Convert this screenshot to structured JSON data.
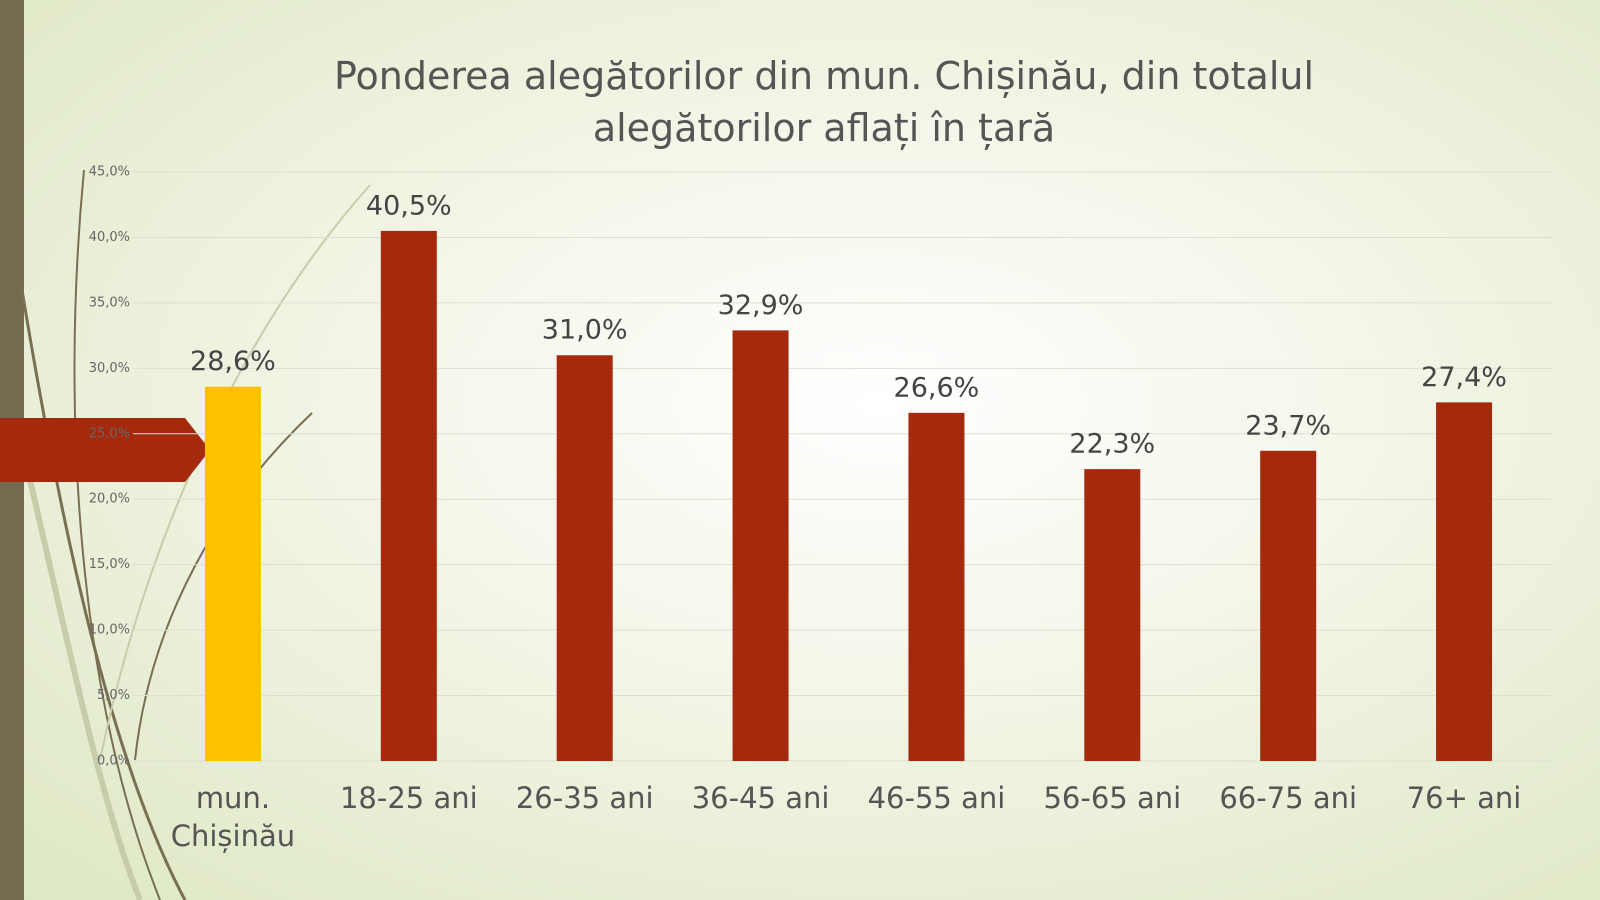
{
  "chart_data": {
    "type": "bar",
    "title": "Ponderea alegătorilor din mun. Chișinău, din totalul alegătorilor aflați în țară",
    "categories": [
      "mun. Chișinău",
      "18-25 ani",
      "26-35 ani",
      "36-45 ani",
      "46-55 ani",
      "56-65 ani",
      "66-75 ani",
      "76+ ani"
    ],
    "values": [
      28.6,
      40.5,
      31.0,
      32.9,
      26.6,
      22.3,
      23.7,
      27.4
    ],
    "value_labels": [
      "28,6%",
      "40,5%",
      "31,0%",
      "32,9%",
      "26,6%",
      "22,3%",
      "23,7%",
      "27,4%"
    ],
    "colors": [
      "#ffc000",
      "#a52a0d",
      "#a52a0d",
      "#a52a0d",
      "#a52a0d",
      "#a52a0d",
      "#a52a0d",
      "#a52a0d"
    ],
    "ylim": [
      0,
      45
    ],
    "yticks": [
      {
        "value": 0,
        "label": "0,0%"
      },
      {
        "value": 5,
        "label": "5,0%"
      },
      {
        "value": 10,
        "label": "10,0%"
      },
      {
        "value": 15,
        "label": "15,0%"
      },
      {
        "value": 20,
        "label": "20,0%"
      },
      {
        "value": 25,
        "label": "25,0%"
      },
      {
        "value": 30,
        "label": "30,0%"
      },
      {
        "value": 35,
        "label": "35,0%"
      },
      {
        "value": 40,
        "label": "40,0%"
      },
      {
        "value": 45,
        "label": "45,0%"
      }
    ],
    "grid": true
  }
}
